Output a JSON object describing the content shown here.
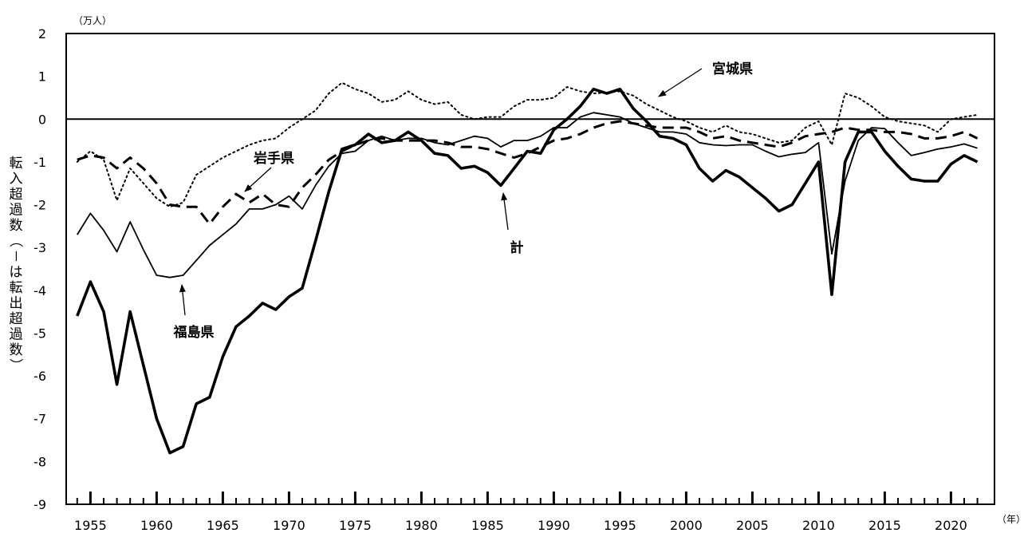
{
  "chart_data": {
    "type": "line",
    "y_unit": "（万人）",
    "x_unit": "（年）",
    "ylabel": "転入超過数（－は転出超過数）",
    "ylim": [
      -9,
      2
    ],
    "yticks": [
      2,
      1,
      0,
      -1,
      -2,
      -3,
      -4,
      -5,
      -6,
      -7,
      -8,
      -9
    ],
    "xlim": [
      1953.5,
      2023.5
    ],
    "xticks": [
      1955,
      1960,
      1965,
      1970,
      1975,
      1980,
      1985,
      1990,
      1995,
      2000,
      2005,
      2010,
      2015,
      2020
    ],
    "x": [
      1954,
      1955,
      1956,
      1957,
      1958,
      1959,
      1960,
      1961,
      1962,
      1963,
      1964,
      1965,
      1966,
      1967,
      1968,
      1969,
      1970,
      1971,
      1972,
      1973,
      1974,
      1975,
      1976,
      1977,
      1978,
      1979,
      1980,
      1981,
      1982,
      1983,
      1984,
      1985,
      1986,
      1987,
      1988,
      1989,
      1990,
      1991,
      1992,
      1993,
      1994,
      1995,
      1996,
      1997,
      1998,
      1999,
      2000,
      2001,
      2002,
      2003,
      2004,
      2005,
      2006,
      2007,
      2008,
      2009,
      2010,
      2011,
      2012,
      2013,
      2014,
      2015,
      2016,
      2017,
      2018,
      2019,
      2020,
      2021,
      2022
    ],
    "series": [
      {
        "name": "宮城県",
        "style": "dotted",
        "color": "#000000",
        "values": [
          -1.0,
          -0.75,
          -0.95,
          -1.9,
          -1.15,
          -1.5,
          -1.85,
          -2.05,
          -1.95,
          -1.3,
          -1.1,
          -0.9,
          -0.75,
          -0.6,
          -0.5,
          -0.45,
          -0.2,
          0.0,
          0.2,
          0.6,
          0.85,
          0.7,
          0.6,
          0.4,
          0.45,
          0.65,
          0.45,
          0.35,
          0.4,
          0.1,
          0.0,
          0.05,
          0.05,
          0.3,
          0.45,
          0.45,
          0.5,
          0.75,
          0.65,
          0.6,
          0.62,
          0.65,
          0.55,
          0.35,
          0.2,
          0.05,
          -0.05,
          -0.2,
          -0.3,
          -0.15,
          -0.3,
          -0.35,
          -0.45,
          -0.55,
          -0.5,
          -0.2,
          -0.05,
          -0.6,
          0.6,
          0.5,
          0.3,
          0.05,
          -0.05,
          -0.1,
          -0.15,
          -0.3,
          0.0,
          0.05,
          0.1
        ]
      },
      {
        "name": "岩手県",
        "style": "dashed",
        "color": "#000000",
        "values": [
          -0.95,
          -0.85,
          -0.9,
          -1.15,
          -0.9,
          -1.15,
          -1.5,
          -2.0,
          -2.05,
          -2.05,
          -2.45,
          -2.05,
          -1.75,
          -1.95,
          -1.75,
          -2.0,
          -2.05,
          -1.6,
          -1.3,
          -0.95,
          -0.75,
          -0.6,
          -0.5,
          -0.45,
          -0.5,
          -0.5,
          -0.5,
          -0.5,
          -0.55,
          -0.65,
          -0.65,
          -0.7,
          -0.8,
          -0.9,
          -0.8,
          -0.65,
          -0.5,
          -0.45,
          -0.35,
          -0.2,
          -0.1,
          -0.05,
          -0.1,
          -0.15,
          -0.2,
          -0.2,
          -0.2,
          -0.3,
          -0.45,
          -0.4,
          -0.5,
          -0.55,
          -0.6,
          -0.65,
          -0.55,
          -0.4,
          -0.35,
          -0.3,
          -0.2,
          -0.25,
          -0.25,
          -0.3,
          -0.3,
          -0.35,
          -0.45,
          -0.45,
          -0.4,
          -0.3,
          -0.45
        ]
      },
      {
        "name": "福島県",
        "style": "thin",
        "color": "#000000",
        "values": [
          -2.7,
          -2.2,
          -2.6,
          -3.1,
          -2.4,
          -3.05,
          -3.65,
          -3.7,
          -3.65,
          -3.3,
          -2.95,
          -2.7,
          -2.45,
          -2.1,
          -2.1,
          -2.0,
          -1.8,
          -2.1,
          -1.55,
          -1.1,
          -0.8,
          -0.75,
          -0.5,
          -0.4,
          -0.5,
          -0.45,
          -0.45,
          -0.55,
          -0.6,
          -0.5,
          -0.4,
          -0.45,
          -0.65,
          -0.5,
          -0.5,
          -0.4,
          -0.2,
          -0.2,
          0.05,
          0.15,
          0.1,
          0.05,
          -0.1,
          -0.2,
          -0.3,
          -0.3,
          -0.35,
          -0.55,
          -0.6,
          -0.62,
          -0.6,
          -0.6,
          -0.75,
          -0.88,
          -0.82,
          -0.78,
          -0.55,
          -3.15,
          -1.45,
          -0.5,
          -0.2,
          -0.22,
          -0.55,
          -0.85,
          -0.78,
          -0.7,
          -0.65,
          -0.58,
          -0.68
        ]
      },
      {
        "name": "計",
        "style": "thick",
        "color": "#000000",
        "values": [
          -4.6,
          -3.8,
          -4.5,
          -6.2,
          -4.5,
          -5.75,
          -7.0,
          -7.8,
          -7.65,
          -6.65,
          -6.5,
          -5.55,
          -4.85,
          -4.6,
          -4.3,
          -4.45,
          -4.15,
          -3.95,
          -2.85,
          -1.7,
          -0.7,
          -0.6,
          -0.35,
          -0.55,
          -0.5,
          -0.3,
          -0.5,
          -0.8,
          -0.85,
          -1.15,
          -1.1,
          -1.25,
          -1.55,
          -1.15,
          -0.75,
          -0.8,
          -0.25,
          0.0,
          0.3,
          0.7,
          0.6,
          0.7,
          0.25,
          -0.05,
          -0.4,
          -0.45,
          -0.6,
          -1.15,
          -1.45,
          -1.2,
          -1.35,
          -1.6,
          -1.85,
          -2.15,
          -2.0,
          -1.5,
          -1.0,
          -4.1,
          -1.0,
          -0.3,
          -0.3,
          -0.75,
          -1.1,
          -1.4,
          -1.45,
          -1.45,
          -1.05,
          -0.85,
          -1.0
        ]
      }
    ],
    "annotations": [
      {
        "label": "宮城県",
        "target_year": 1997,
        "target_series": "宮城県"
      },
      {
        "label": "岩手県",
        "target_year": 1967,
        "target_series": "岩手県"
      },
      {
        "label": "計",
        "target_year": 1986,
        "target_series": "計"
      },
      {
        "label": "福島県",
        "target_year": 1962,
        "target_series": "福島県"
      }
    ],
    "grid": false,
    "legend": "none"
  }
}
